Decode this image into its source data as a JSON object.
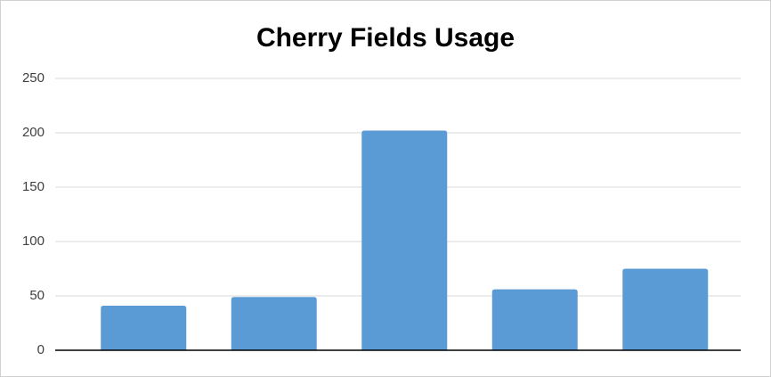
{
  "chart_data": {
    "type": "bar",
    "title": "Cherry Fields Usage",
    "categories": [
      null,
      null,
      null,
      null,
      null
    ],
    "values": [
      41,
      49,
      202,
      56,
      75
    ],
    "color": "#5b9bd5",
    "ylim": [
      0,
      250
    ],
    "yticks": [
      0,
      50,
      100,
      150,
      200,
      250
    ],
    "grid": true
  }
}
